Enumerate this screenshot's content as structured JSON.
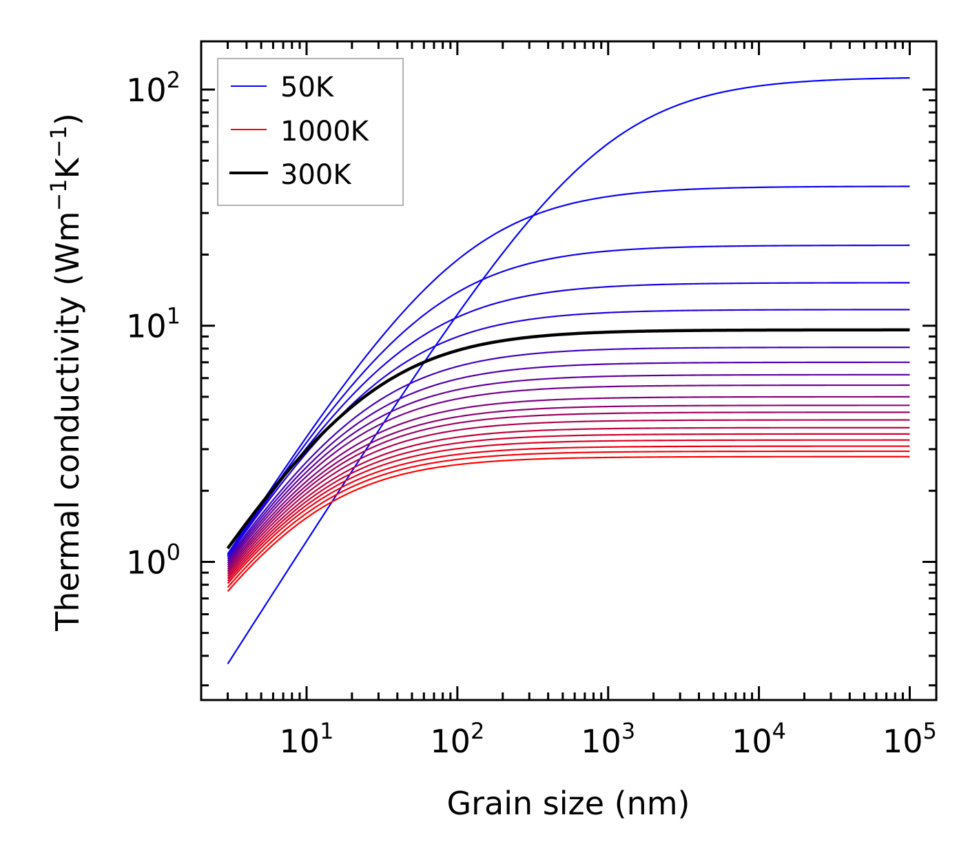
{
  "chart_data": {
    "type": "line",
    "title": "",
    "xlabel": "Grain size (nm)",
    "ylabel_base": "Thermal conductivity (Wm",
    "ylabel_sup1": "−1",
    "ylabel_mid": "K",
    "ylabel_sup2": "−1",
    "ylabel_end": ")",
    "xscale": "log",
    "yscale": "log",
    "xlim": [
      2,
      150000
    ],
    "ylim": [
      0.26,
      160
    ],
    "x_ticks": [
      {
        "base": "10",
        "exp": "1",
        "value": 10
      },
      {
        "base": "10",
        "exp": "2",
        "value": 100
      },
      {
        "base": "10",
        "exp": "3",
        "value": 1000
      },
      {
        "base": "10",
        "exp": "4",
        "value": 10000
      },
      {
        "base": "10",
        "exp": "5",
        "value": 100000
      }
    ],
    "y_ticks": [
      {
        "base": "10",
        "exp": "0",
        "value": 1
      },
      {
        "base": "10",
        "exp": "1",
        "value": 10
      },
      {
        "base": "10",
        "exp": "2",
        "value": 100
      }
    ],
    "grid": false,
    "legend": {
      "placement": "top-left",
      "entries": [
        {
          "label": "50K",
          "color": "#0000ff"
        },
        {
          "label": "1000K",
          "color": "#ff0000"
        },
        {
          "label": "300K",
          "color": "#000000"
        }
      ]
    },
    "x_range_data": [
      3,
      100000
    ],
    "series": [
      {
        "name": "50K",
        "color": "#0000ff",
        "k_start": 0.37,
        "k_end": 112,
        "highlight": false
      },
      {
        "name": "100K",
        "color": "#0800f7",
        "k_start": 1.08,
        "k_end": 38.9,
        "highlight": false
      },
      {
        "name": "150K",
        "color": "#1000ef",
        "k_start": 1.07,
        "k_end": 21.9,
        "highlight": false
      },
      {
        "name": "200K",
        "color": "#1800e7",
        "k_start": 1.06,
        "k_end": 15.2,
        "highlight": false
      },
      {
        "name": "250K",
        "color": "#2000df",
        "k_start": 1.05,
        "k_end": 11.7,
        "highlight": false
      },
      {
        "name": "300K",
        "color": "#000000",
        "k_start": 1.14,
        "k_end": 9.6,
        "highlight": true
      },
      {
        "name": "350K",
        "color": "#4000bf",
        "k_start": 1.03,
        "k_end": 8.1,
        "highlight": false
      },
      {
        "name": "400K",
        "color": "#5000af",
        "k_start": 1.01,
        "k_end": 7.0,
        "highlight": false
      },
      {
        "name": "450K",
        "color": "#60009f",
        "k_start": 0.99,
        "k_end": 6.2,
        "highlight": false
      },
      {
        "name": "500K",
        "color": "#70008f",
        "k_start": 0.97,
        "k_end": 5.6,
        "highlight": false
      },
      {
        "name": "550K",
        "color": "#80007f",
        "k_start": 0.95,
        "k_end": 5.0,
        "highlight": false
      },
      {
        "name": "600K",
        "color": "#90006f",
        "k_start": 0.93,
        "k_end": 4.6,
        "highlight": false
      },
      {
        "name": "650K",
        "color": "#a0005f",
        "k_start": 0.91,
        "k_end": 4.3,
        "highlight": false
      },
      {
        "name": "700K",
        "color": "#b0004f",
        "k_start": 0.89,
        "k_end": 3.99,
        "highlight": false
      },
      {
        "name": "750K",
        "color": "#c0003f",
        "k_start": 0.87,
        "k_end": 3.7,
        "highlight": false
      },
      {
        "name": "800K",
        "color": "#d0002f",
        "k_start": 0.85,
        "k_end": 3.48,
        "highlight": false
      },
      {
        "name": "850K",
        "color": "#df0020",
        "k_start": 0.83,
        "k_end": 3.28,
        "highlight": false
      },
      {
        "name": "900K",
        "color": "#ef0010",
        "k_start": 0.81,
        "k_end": 3.09,
        "highlight": false
      },
      {
        "name": "950K",
        "color": "#f70008",
        "k_start": 0.78,
        "k_end": 2.94,
        "highlight": false
      },
      {
        "name": "1000K",
        "color": "#ff0000",
        "k_start": 0.75,
        "k_end": 2.79,
        "highlight": false
      }
    ]
  }
}
